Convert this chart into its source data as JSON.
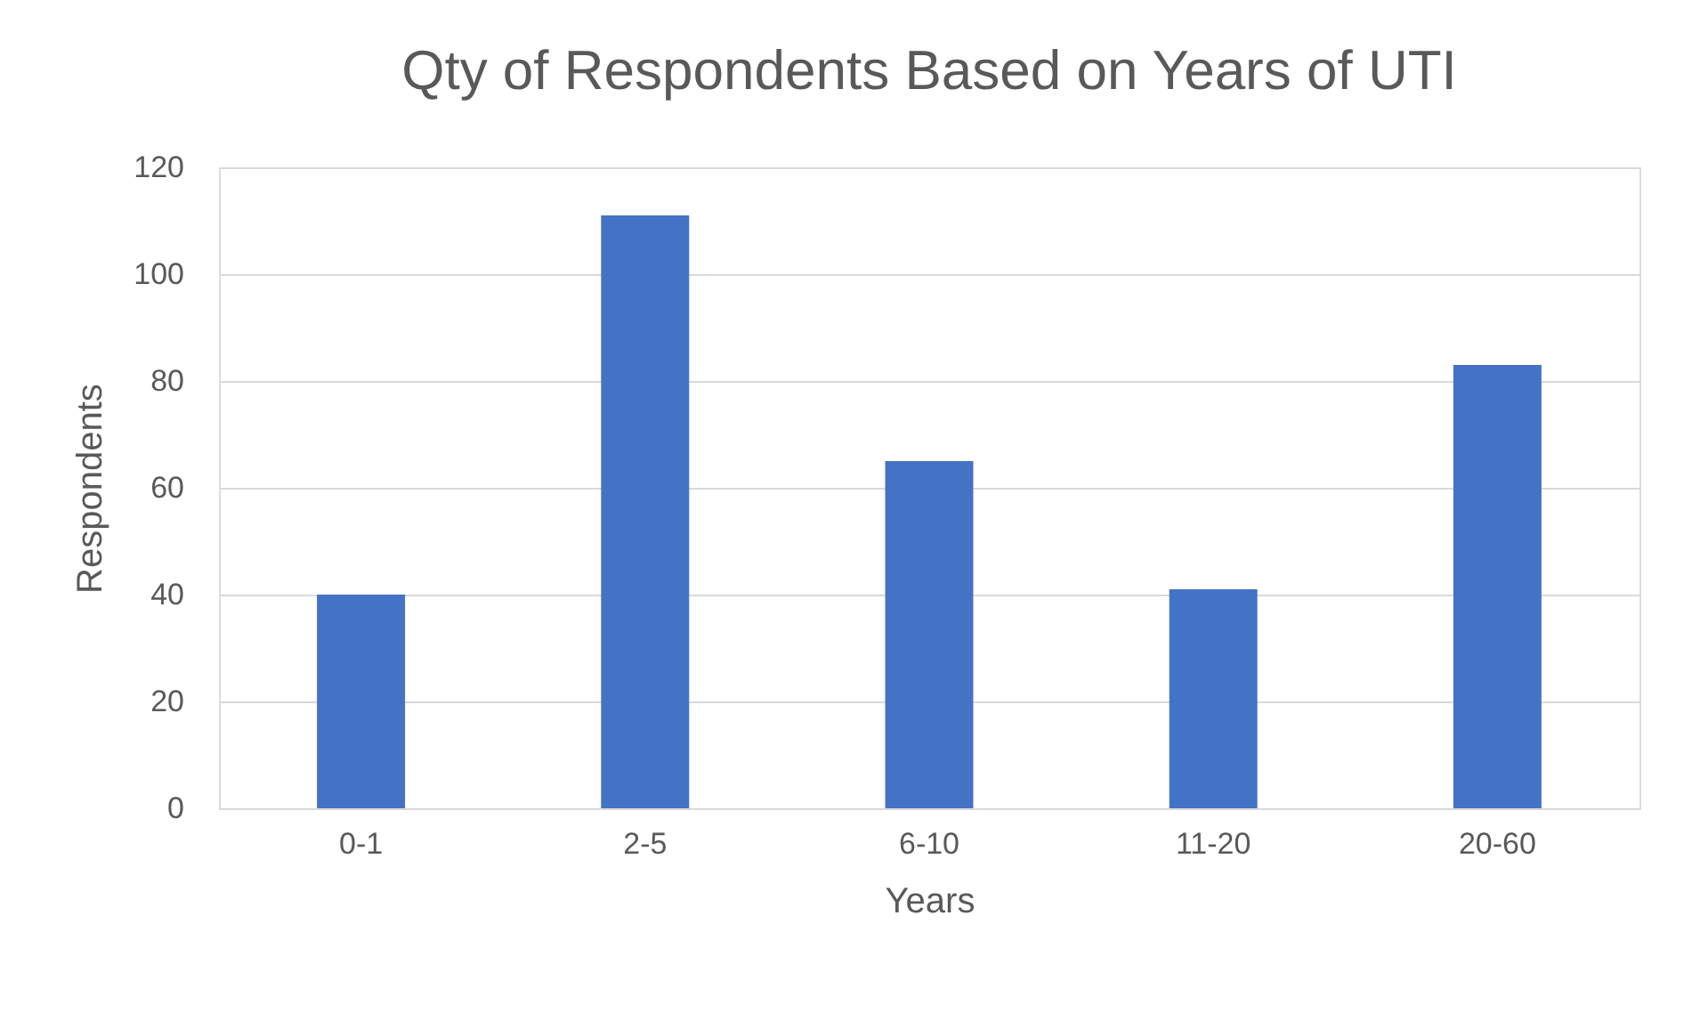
{
  "chart_data": {
    "type": "bar",
    "title": "Qty of Respondents Based on Years of UTI",
    "xlabel": "Years",
    "ylabel": "Respondents",
    "categories": [
      "0-1",
      "2-5",
      "6-10",
      "11-20",
      "20-60"
    ],
    "values": [
      40,
      111,
      65,
      41,
      83
    ],
    "color": "#4472c4",
    "ylim": [
      0,
      120
    ],
    "yticks": [
      0,
      20,
      40,
      60,
      80,
      100,
      120
    ],
    "grid": "y"
  }
}
